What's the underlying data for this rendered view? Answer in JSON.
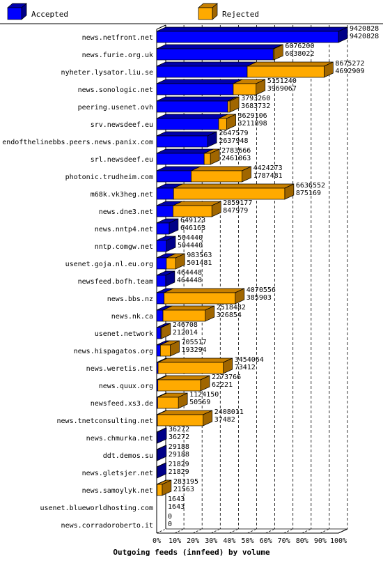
{
  "chart_data": {
    "type": "bar",
    "orientation": "horizontal",
    "stacked": true,
    "three_d": true,
    "title": "Outgoing feeds (innfeed) by volume",
    "legend": {
      "placement": "top",
      "items": [
        {
          "name": "Accepted",
          "color": "#0000ff"
        },
        {
          "name": "Rejected",
          "color": "#ffaa00"
        }
      ]
    },
    "x_ticks": [
      "0%",
      "10%",
      "20%",
      "30%",
      "40%",
      "50%",
      "60%",
      "70%",
      "80%",
      "90%",
      "100%"
    ],
    "xlim": [
      0,
      100
    ],
    "grid": true,
    "max_value": 9420828,
    "categories": [
      {
        "name": "news.netfront.net",
        "offered": "9420828",
        "accepted": "9420828"
      },
      {
        "name": "news.furie.org.uk",
        "offered": "6076200",
        "accepted": "6038022"
      },
      {
        "name": "nyheter.lysator.liu.se",
        "offered": "8675272",
        "accepted": "4692909"
      },
      {
        "name": "news.sonologic.net",
        "offered": "5151240",
        "accepted": "3969067"
      },
      {
        "name": "peering.usenet.ovh",
        "offered": "3793260",
        "accepted": "3683732"
      },
      {
        "name": "srv.newsdeef.eu",
        "offered": "3629106",
        "accepted": "3211898"
      },
      {
        "name": "endofthelinebbs.peers.news.panix.com",
        "offered": "2647579",
        "accepted": "2637948"
      },
      {
        "name": "srl.newsdeef.eu",
        "offered": "2783666",
        "accepted": "2461063"
      },
      {
        "name": "photonic.trudheim.com",
        "offered": "4424273",
        "accepted": "1787481"
      },
      {
        "name": "m68k.vk3heg.net",
        "offered": "6636552",
        "accepted": "875169"
      },
      {
        "name": "news.dne3.net",
        "offered": "2859177",
        "accepted": "847979"
      },
      {
        "name": "news.nntp4.net",
        "offered": "649123",
        "accepted": "646163"
      },
      {
        "name": "nntp.comgw.net",
        "offered": "504440",
        "accepted": "504440"
      },
      {
        "name": "usenet.goja.nl.eu.org",
        "offered": "983563",
        "accepted": "501481"
      },
      {
        "name": "newsfeed.bofh.team",
        "offered": "464448",
        "accepted": "464448"
      },
      {
        "name": "news.bbs.nz",
        "offered": "4070556",
        "accepted": "385903"
      },
      {
        "name": "news.nk.ca",
        "offered": "2518482",
        "accepted": "326854"
      },
      {
        "name": "usenet.network",
        "offered": "246708",
        "accepted": "212014"
      },
      {
        "name": "news.hispagatos.org",
        "offered": "705517",
        "accepted": "193294"
      },
      {
        "name": "news.weretis.net",
        "offered": "3454064",
        "accepted": "73412"
      },
      {
        "name": "news.quux.org",
        "offered": "2273766",
        "accepted": "62221"
      },
      {
        "name": "newsfeed.xs3.de",
        "offered": "1124150",
        "accepted": "50569"
      },
      {
        "name": "news.tnetconsulting.net",
        "offered": "2408011",
        "accepted": "37482"
      },
      {
        "name": "news.chmurka.net",
        "offered": "36272",
        "accepted": "36272"
      },
      {
        "name": "ddt.demos.su",
        "offered": "29188",
        "accepted": "29188"
      },
      {
        "name": "news.gletsjer.net",
        "offered": "21829",
        "accepted": "21829"
      },
      {
        "name": "news.samoylyk.net",
        "offered": "283195",
        "accepted": "21563"
      },
      {
        "name": "usenet.blueworldhosting.com",
        "offered": "1643",
        "accepted": "1643"
      },
      {
        "name": "news.corradoroberto.it",
        "offered": "0",
        "accepted": "0"
      }
    ]
  }
}
